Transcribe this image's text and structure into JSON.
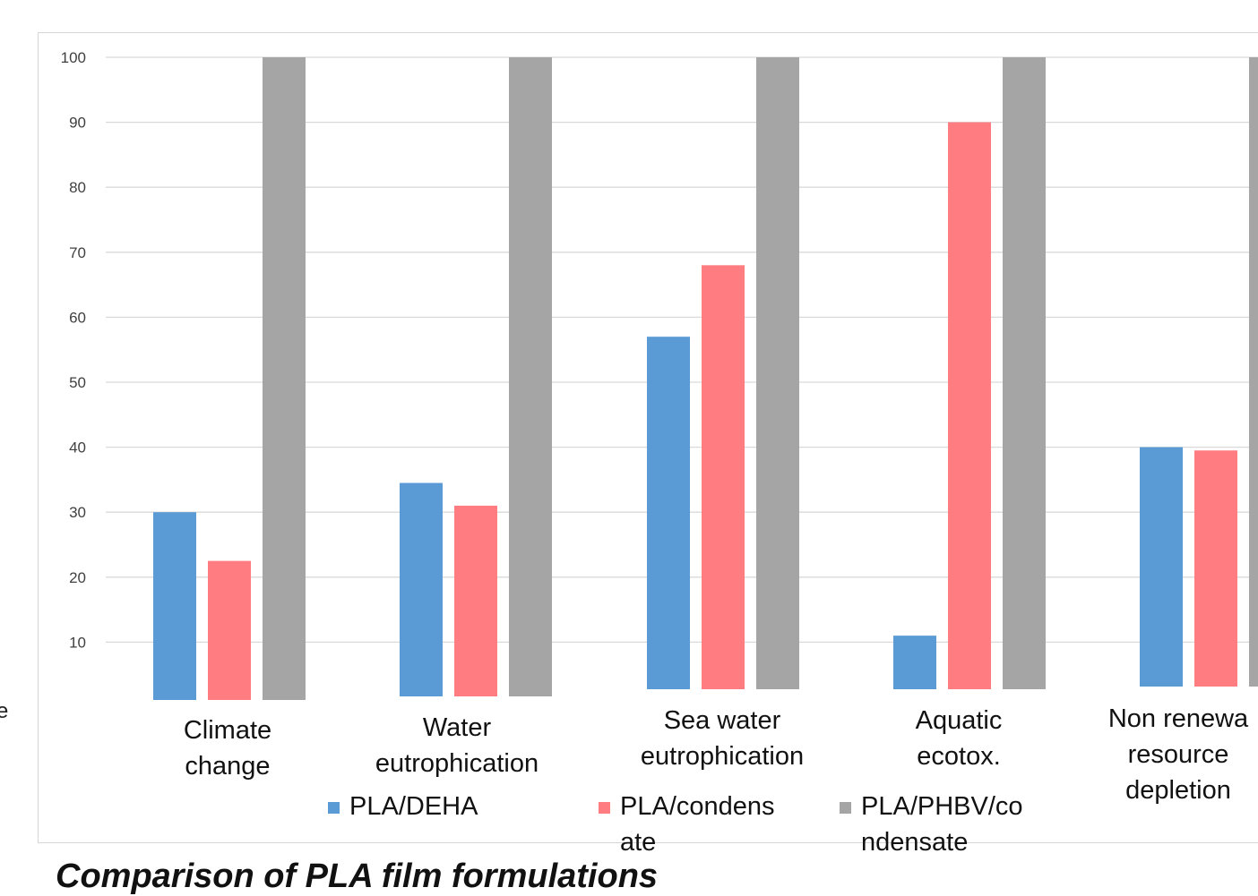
{
  "caption": "Comparison of PLA film formulations",
  "stray_label": "e",
  "chart_data": {
    "type": "bar",
    "title": "Comparison of PLA film formulations",
    "categories": [
      [
        "Climate",
        "change"
      ],
      [
        "Water",
        "eutrophication"
      ],
      [
        "Sea water",
        "eutrophication"
      ],
      [
        "Aquatic",
        "ecotox."
      ],
      [
        "Non renewa",
        "resource",
        "depletion"
      ]
    ],
    "series": [
      {
        "name": "PLA/DEHA",
        "name_lines": [
          "PLA/DEHA"
        ],
        "color": "#5b9bd5",
        "values": [
          30,
          34.5,
          57,
          11,
          40
        ]
      },
      {
        "name": "PLA/condensate",
        "name_lines": [
          "PLA/condens",
          "ate"
        ],
        "color": "#ff7c80",
        "values": [
          22.5,
          31,
          68,
          90,
          39.5
        ]
      },
      {
        "name": "PLA/PHBV/condensate",
        "name_lines": [
          "PLA/PHBV/co",
          "ndensate"
        ],
        "color": "#a5a5a5",
        "values": [
          100,
          100,
          100,
          100,
          100
        ]
      }
    ],
    "yticks": [
      0,
      10,
      20,
      30,
      40,
      50,
      60,
      70,
      80,
      90,
      100
    ],
    "ylim": [
      0,
      100
    ],
    "grid": true,
    "legend": "bottom"
  }
}
